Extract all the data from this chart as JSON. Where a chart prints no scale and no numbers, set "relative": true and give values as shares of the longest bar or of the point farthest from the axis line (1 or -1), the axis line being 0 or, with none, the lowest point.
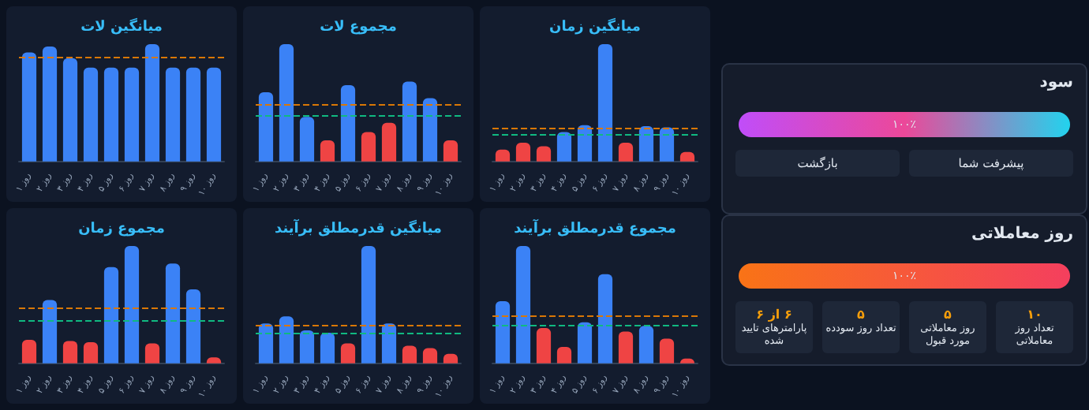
{
  "chart_data": [
    {
      "type": "bar",
      "title": "میانگین لات",
      "relative": true,
      "categories": [
        "روز ۱",
        "روز ۲",
        "روز ۳",
        "روز ۴",
        "روز ۵",
        "روز ۶",
        "روز ۷",
        "روز ۸",
        "روز ۹",
        "روز ۱۰"
      ],
      "values": [
        0.93,
        0.98,
        0.88,
        0.8,
        0.8,
        0.8,
        1,
        0.8,
        0.8,
        0.8
      ],
      "colors": [
        "#3b82f6",
        "#3b82f6",
        "#3b82f6",
        "#3b82f6",
        "#3b82f6",
        "#3b82f6",
        "#3b82f6",
        "#3b82f6",
        "#3b82f6",
        "#3b82f6"
      ],
      "ref_lines": [
        {
          "axis": "y",
          "value": 0.89,
          "color": "#d97706",
          "line_style": "dashed"
        }
      ]
    },
    {
      "type": "bar",
      "title": "مجموع لات",
      "relative": true,
      "categories": [
        "روز ۱",
        "روز ۲",
        "روز ۳",
        "روز ۴",
        "روز ۵",
        "روز ۶",
        "روز ۷",
        "روز ۸",
        "روز ۹",
        "روز ۱۰"
      ],
      "values": [
        0.59,
        1,
        0.38,
        0.18,
        0.65,
        0.25,
        0.33,
        0.68,
        0.54,
        0.18
      ],
      "colors": [
        "#3b82f6",
        "#3b82f6",
        "#3b82f6",
        "#ef4444",
        "#3b82f6",
        "#ef4444",
        "#ef4444",
        "#3b82f6",
        "#3b82f6",
        "#ef4444"
      ],
      "ref_lines": [
        {
          "axis": "y",
          "value": 0.48,
          "color": "#d97706",
          "line_style": "dashed"
        },
        {
          "axis": "y",
          "value": 0.39,
          "color": "#10b981",
          "line_style": "dashed"
        }
      ]
    },
    {
      "type": "bar",
      "title": "میانگین زمان",
      "relative": true,
      "categories": [
        "روز ۱",
        "روز ۲",
        "روز ۳",
        "روز ۴",
        "روز ۵",
        "روز ۶",
        "روز ۷",
        "روز ۸",
        "روز ۹",
        "روز ۱۰"
      ],
      "values": [
        0.1,
        0.16,
        0.13,
        0.25,
        0.31,
        1,
        0.16,
        0.3,
        0.29,
        0.08
      ],
      "colors": [
        "#ef4444",
        "#ef4444",
        "#ef4444",
        "#3b82f6",
        "#3b82f6",
        "#3b82f6",
        "#ef4444",
        "#3b82f6",
        "#3b82f6",
        "#ef4444"
      ],
      "ref_lines": [
        {
          "axis": "y",
          "value": 0.28,
          "color": "#d97706",
          "line_style": "dashed"
        },
        {
          "axis": "y",
          "value": 0.23,
          "color": "#10b981",
          "line_style": "dashed"
        }
      ]
    },
    {
      "type": "bar",
      "title": "مجموع زمان",
      "relative": true,
      "categories": [
        "روز ۱",
        "روز ۲",
        "روز ۳",
        "روز ۴",
        "روز ۵",
        "روز ۶",
        "روز ۷",
        "روز ۸",
        "روز ۹",
        "روز ۱۰"
      ],
      "values": [
        0.2,
        0.54,
        0.19,
        0.18,
        0.82,
        1,
        0.17,
        0.85,
        0.63,
        0.05
      ],
      "colors": [
        "#ef4444",
        "#3b82f6",
        "#ef4444",
        "#ef4444",
        "#3b82f6",
        "#3b82f6",
        "#ef4444",
        "#3b82f6",
        "#3b82f6",
        "#ef4444"
      ],
      "ref_lines": [
        {
          "axis": "y",
          "value": 0.47,
          "color": "#d97706",
          "line_style": "dashed"
        },
        {
          "axis": "y",
          "value": 0.37,
          "color": "#10b981",
          "line_style": "dashed"
        }
      ]
    },
    {
      "type": "bar",
      "title": "میانگین قدرمطلق برآیند",
      "relative": true,
      "categories": [
        "روز ۱",
        "روز ۲",
        "روز ۳",
        "روز ۴",
        "روز ۵",
        "روز ۶",
        "روز ۷",
        "روز ۸",
        "روز ۹",
        "روز ۱۰"
      ],
      "values": [
        0.34,
        0.4,
        0.28,
        0.26,
        0.17,
        1,
        0.34,
        0.15,
        0.13,
        0.08
      ],
      "colors": [
        "#3b82f6",
        "#3b82f6",
        "#3b82f6",
        "#3b82f6",
        "#ef4444",
        "#3b82f6",
        "#3b82f6",
        "#ef4444",
        "#ef4444",
        "#ef4444"
      ],
      "ref_lines": [
        {
          "axis": "y",
          "value": 0.33,
          "color": "#d97706",
          "line_style": "dashed"
        },
        {
          "axis": "y",
          "value": 0.26,
          "color": "#10b981",
          "line_style": "dashed"
        }
      ]
    },
    {
      "type": "bar",
      "title": "مجموع قدرمطلق برآیند",
      "relative": true,
      "categories": [
        "روز ۱",
        "روز ۲",
        "روز ۳",
        "روز ۴",
        "روز ۵",
        "روز ۶",
        "روز ۷",
        "روز ۸",
        "روز ۹",
        "روز ۱۰"
      ],
      "values": [
        0.53,
        1,
        0.3,
        0.14,
        0.35,
        0.76,
        0.27,
        0.32,
        0.21,
        0.04
      ],
      "colors": [
        "#3b82f6",
        "#3b82f6",
        "#ef4444",
        "#ef4444",
        "#3b82f6",
        "#3b82f6",
        "#ef4444",
        "#3b82f6",
        "#ef4444",
        "#ef4444"
      ],
      "ref_lines": [
        {
          "axis": "y",
          "value": 0.4,
          "color": "#d97706",
          "line_style": "dashed"
        },
        {
          "axis": "y",
          "value": 0.32,
          "color": "#10b981",
          "line_style": "dashed"
        }
      ]
    },
    {
      "type": "other",
      "title": "سود",
      "annotations": [
        "۱۰۰٪",
        "پیشرفت شما",
        "بازگشت"
      ]
    },
    {
      "type": "other",
      "title": "روز معاملاتی",
      "annotations": [
        "۱۰۰٪",
        "۱۰",
        "تعداد روز معاملاتی",
        "۵",
        "روز معاملاتی مورد قبول",
        "۵",
        "تعداد روز سودده",
        "۶ از ۶",
        "پارامترهای تایید شده"
      ]
    }
  ]
}
